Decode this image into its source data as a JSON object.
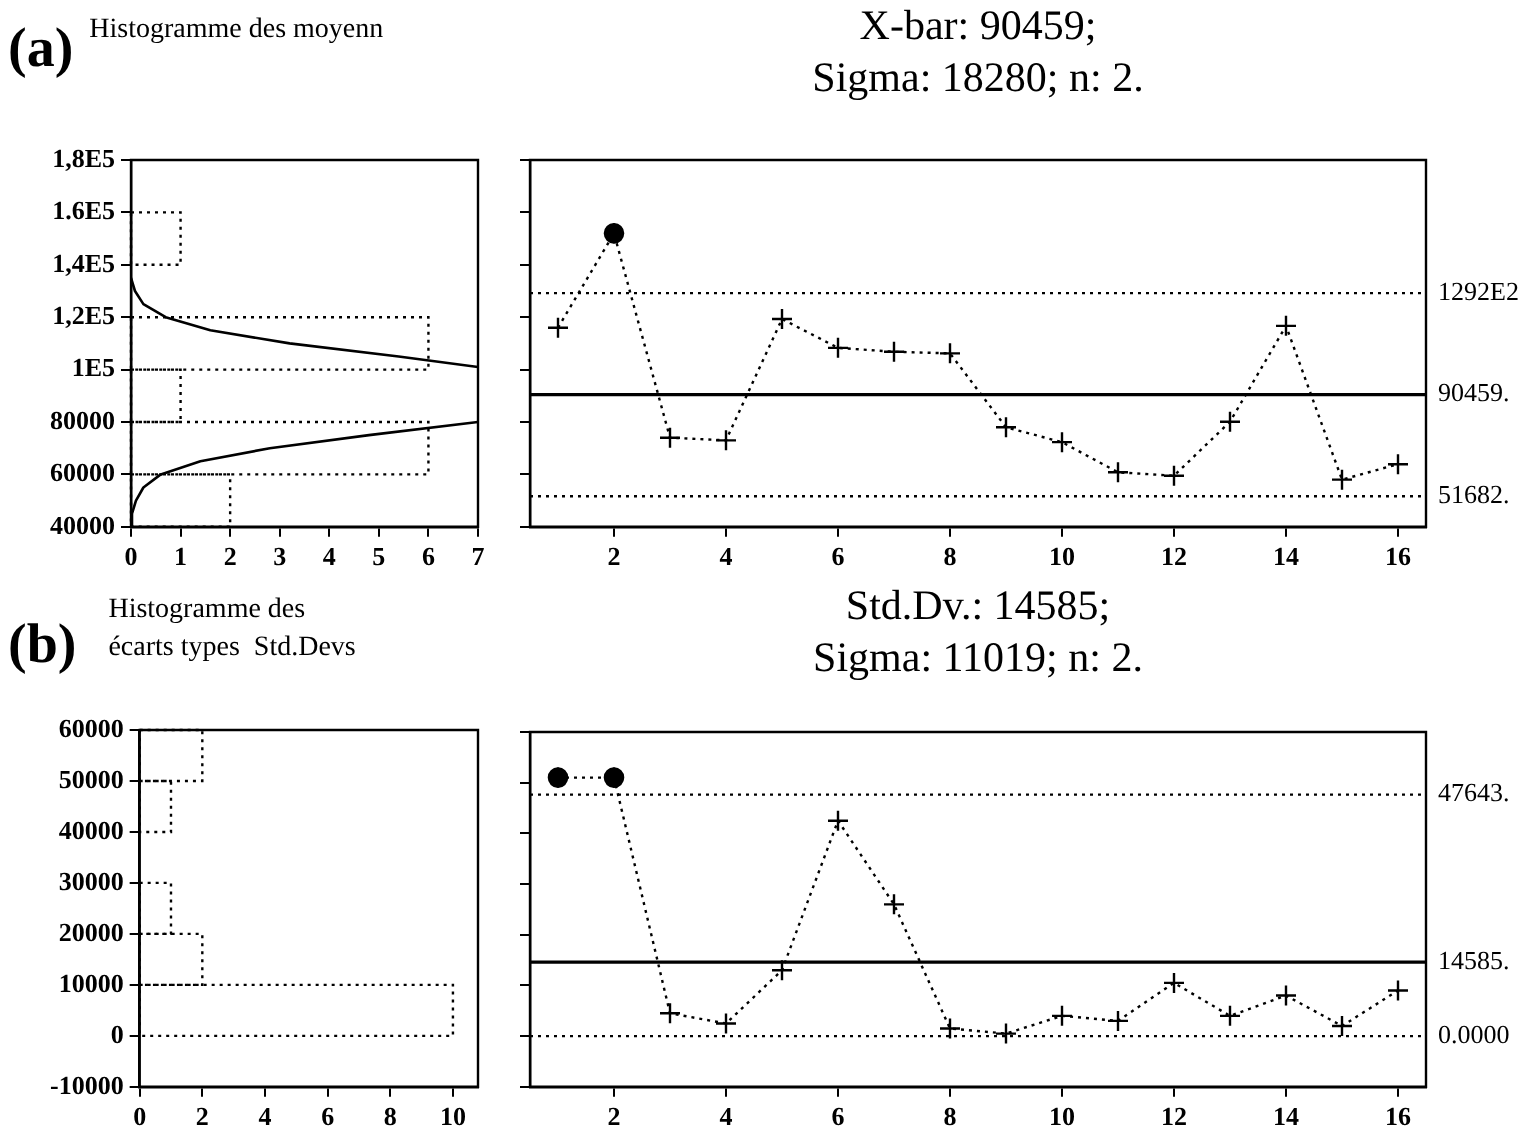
{
  "chart_data": [
    {
      "type": "histogram",
      "orientation": "horizontal",
      "title": "Histogramme des moyenn",
      "annotations": [
        "(a)"
      ],
      "bins": [
        40000,
        60000,
        80000,
        100000,
        120000,
        140000,
        160000
      ],
      "values": [
        2,
        6,
        1,
        6,
        0,
        1
      ],
      "color": "#000000",
      "line_style": "dotted",
      "series": [
        {
          "type": "line",
          "color": "#000000",
          "line_style": "solid",
          "x": [
            40000,
            45000,
            50000,
            55000,
            60000,
            65000,
            70000,
            75000,
            80000
          ],
          "values": [
            0,
            0.02,
            0.1,
            0.25,
            0.6,
            1.4,
            2.8,
            4.8,
            7
          ]
        },
        {
          "type": "line",
          "color": "#000000",
          "line_style": "solid",
          "x": [
            101000,
            105000,
            110000,
            115000,
            120000,
            125000,
            130000,
            135000
          ],
          "values": [
            7,
            5.4,
            3.2,
            1.6,
            0.7,
            0.25,
            0.08,
            0
          ]
        }
      ],
      "xlim": [
        0,
        7
      ],
      "xticks": [
        0,
        1,
        2,
        3,
        4,
        5,
        6,
        7
      ],
      "ylim": [
        40000,
        180000
      ],
      "yticks": [
        40000,
        60000,
        80000,
        {
          "value": 100000,
          "label": "1E5"
        },
        {
          "value": 120000,
          "label": "1,2E5"
        },
        {
          "value": 140000,
          "label": "1,4E5"
        },
        {
          "value": 160000,
          "label": "1.6E5"
        },
        {
          "value": 180000,
          "label": "1,8E5"
        }
      ],
      "grid": false,
      "legend": false
    },
    {
      "type": "line",
      "title": "X-bar: 90459;\nSigma: 18280; n: 2.",
      "x": [
        1,
        2,
        3,
        4,
        5,
        6,
        7,
        8,
        9,
        10,
        11,
        12,
        13,
        14,
        15,
        16
      ],
      "series": [
        {
          "type": "line",
          "color": "#000000",
          "marker": "cross",
          "line_style": "dotted",
          "values": [
            116000,
            152000,
            74000,
            73000,
            119300,
            108300,
            106800,
            106200,
            78000,
            72300,
            60800,
            59500,
            80100,
            116700,
            58000,
            63900
          ]
        },
        {
          "type": "scatter",
          "color": "#000000",
          "marker": "circle",
          "x": [
            2
          ],
          "values": [
            152000
          ]
        }
      ],
      "xlim": [
        0.5,
        16.5
      ],
      "xticks": [
        2,
        4,
        6,
        8,
        10,
        12,
        14,
        16
      ],
      "ylim": [
        40000,
        180000
      ],
      "yticks": [
        40000,
        60000,
        80000,
        100000,
        120000,
        140000,
        160000,
        180000
      ],
      "tick_labels": "x",
      "ref_lines": [
        {
          "axis": "y",
          "value": 129200,
          "label": "1292E2",
          "line_style": "dotted",
          "color": "#000000"
        },
        {
          "axis": "y",
          "value": 90459,
          "label": "90459.",
          "line_style": "solid",
          "color": "#000000"
        },
        {
          "axis": "y",
          "value": 51682,
          "label": "51682.",
          "line_style": "dotted",
          "color": "#000000"
        }
      ],
      "grid": false,
      "legend": false
    },
    {
      "type": "histogram",
      "orientation": "horizontal",
      "title": "Histogramme des\nécarts types  Std.Devs",
      "annotations": [
        "(b)"
      ],
      "bins": [
        0,
        10000,
        20000,
        30000,
        40000,
        50000,
        60000
      ],
      "values": [
        10,
        2,
        1,
        0,
        1,
        2
      ],
      "color": "#000000",
      "line_style": "dotted",
      "xlim": [
        0,
        10.8
      ],
      "xticks": [
        0,
        2,
        4,
        6,
        8,
        10
      ],
      "ylim": [
        -10000,
        60000
      ],
      "yticks": [
        -10000,
        0,
        10000,
        20000,
        30000,
        40000,
        50000,
        60000
      ],
      "grid": false,
      "legend": false
    },
    {
      "type": "line",
      "title": "Std.Dv.: 14585;\nSigma: 11019; n: 2.",
      "x": [
        1,
        2,
        3,
        4,
        5,
        6,
        7,
        8,
        9,
        10,
        11,
        12,
        13,
        14,
        15,
        16
      ],
      "series": [
        {
          "type": "line",
          "color": "#000000",
          "marker": "cross",
          "line_style": "dotted",
          "values": [
            51000,
            51000,
            4500,
            2500,
            13000,
            42500,
            26000,
            1500,
            500,
            4000,
            3000,
            10500,
            4000,
            8000,
            2000,
            9000
          ]
        },
        {
          "type": "scatter",
          "color": "#000000",
          "marker": "circle",
          "x": [
            1,
            2
          ],
          "values": [
            51000,
            51000
          ]
        }
      ],
      "xlim": [
        0.5,
        16.5
      ],
      "xticks": [
        2,
        4,
        6,
        8,
        10,
        12,
        14,
        16
      ],
      "ylim": [
        -10000,
        60000
      ],
      "yticks": [
        -10000,
        0,
        10000,
        20000,
        30000,
        40000,
        50000,
        60000
      ],
      "tick_labels": "x",
      "ref_lines": [
        {
          "axis": "y",
          "value": 47643,
          "label": "47643.",
          "line_style": "dotted",
          "color": "#000000"
        },
        {
          "axis": "y",
          "value": 14585,
          "label": "14585.",
          "line_style": "solid",
          "color": "#000000"
        },
        {
          "axis": "y",
          "value": 0,
          "label": "0.0000",
          "line_style": "dotted",
          "color": "#000000"
        }
      ],
      "grid": false,
      "legend": false
    }
  ]
}
